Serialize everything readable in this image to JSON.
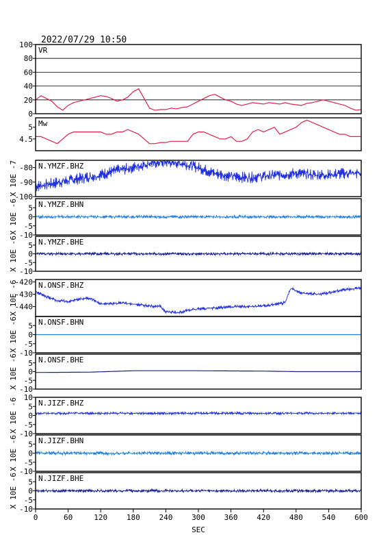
{
  "header": {
    "datetime": "2022/07/29  10:50"
  },
  "chart_data": {
    "type": "line",
    "xlabel": "SEC",
    "xlim": [
      0,
      600
    ],
    "xticks": [
      0,
      60,
      120,
      180,
      240,
      300,
      360,
      420,
      480,
      540,
      600
    ],
    "colors": {
      "vr": "#e0204a",
      "mw": "#e0204a",
      "trace": "#1f2ee0",
      "trace_light": "#1f7fe0",
      "trace_dark": "#14208f"
    },
    "panels": [
      {
        "id": "vr",
        "label": "VR",
        "ylim": [
          0,
          100
        ],
        "yticks": [
          0,
          20,
          40,
          60,
          80,
          100
        ],
        "grid": true,
        "series": {
          "x": [
            0,
            10,
            20,
            30,
            40,
            50,
            60,
            70,
            80,
            90,
            100,
            110,
            120,
            130,
            140,
            150,
            160,
            170,
            180,
            190,
            200,
            210,
            220,
            230,
            240,
            250,
            260,
            270,
            280,
            290,
            300,
            310,
            320,
            330,
            340,
            350,
            360,
            370,
            380,
            390,
            400,
            410,
            420,
            430,
            440,
            450,
            460,
            470,
            480,
            490,
            500,
            510,
            520,
            530,
            540,
            550,
            560,
            570,
            580,
            590,
            600
          ],
          "y": [
            20,
            26,
            22,
            18,
            10,
            5,
            12,
            16,
            18,
            20,
            22,
            24,
            26,
            25,
            22,
            18,
            20,
            24,
            32,
            36,
            22,
            8,
            5,
            6,
            6,
            8,
            7,
            9,
            10,
            14,
            18,
            22,
            26,
            28,
            24,
            20,
            18,
            14,
            12,
            14,
            16,
            15,
            14,
            16,
            15,
            14,
            16,
            14,
            13,
            12,
            15,
            16,
            18,
            20,
            18,
            16,
            14,
            12,
            8,
            5,
            6
          ]
        }
      },
      {
        "id": "mw",
        "label": "Mw",
        "ylim": [
          4.0,
          5.4
        ],
        "yticks": [
          4.5,
          5.0
        ],
        "grid": false,
        "series": {
          "x": [
            0,
            10,
            20,
            30,
            40,
            50,
            60,
            70,
            80,
            90,
            100,
            110,
            120,
            130,
            140,
            150,
            160,
            170,
            180,
            190,
            200,
            210,
            220,
            230,
            240,
            250,
            260,
            270,
            280,
            290,
            300,
            310,
            320,
            330,
            340,
            350,
            360,
            370,
            380,
            390,
            400,
            410,
            420,
            430,
            440,
            450,
            460,
            470,
            480,
            490,
            500,
            510,
            520,
            530,
            540,
            550,
            560,
            570,
            580,
            590,
            600
          ],
          "y": [
            4.6,
            4.6,
            4.5,
            4.4,
            4.3,
            4.5,
            4.7,
            4.8,
            4.8,
            4.8,
            4.8,
            4.8,
            4.8,
            4.7,
            4.7,
            4.8,
            4.8,
            4.9,
            4.8,
            4.7,
            4.5,
            4.3,
            4.3,
            4.35,
            4.35,
            4.4,
            4.4,
            4.4,
            4.4,
            4.7,
            4.8,
            4.8,
            4.7,
            4.6,
            4.5,
            4.5,
            4.6,
            4.4,
            4.4,
            4.5,
            4.8,
            4.9,
            4.8,
            4.9,
            5.0,
            4.7,
            4.8,
            4.9,
            5.0,
            5.2,
            5.3,
            5.2,
            5.1,
            5.0,
            4.9,
            4.8,
            4.7,
            4.7,
            4.6,
            4.6,
            4.6
          ]
        }
      },
      {
        "id": "ymzf_bhz",
        "label": "N.YMZF.BHZ",
        "ylim": [
          -100,
          -75
        ],
        "yticks": [
          -100,
          -90,
          -80
        ],
        "ylabel": "X 10E -7",
        "series": {
          "x": [
            0,
            30,
            60,
            90,
            120,
            150,
            180,
            210,
            240,
            270,
            300,
            330,
            360,
            390,
            420,
            450,
            480,
            510,
            540,
            570,
            600
          ],
          "y": [
            -93,
            -91,
            -89,
            -87,
            -85,
            -82,
            -80,
            -77,
            -76,
            -77,
            -80,
            -84,
            -86,
            -87,
            -86,
            -85,
            -84,
            -85,
            -85,
            -84,
            -84
          ],
          "noise": 2.5,
          "color": "trace"
        }
      },
      {
        "id": "ymzf_bhn",
        "label": "N.YMZF.BHN",
        "ylim": [
          -10,
          10
        ],
        "yticks": [
          -10,
          -5,
          0,
          5
        ],
        "ylabel": "X 10E -6",
        "series": {
          "x": [
            0,
            600
          ],
          "y": [
            0,
            0
          ],
          "noise": 0.5,
          "color": "trace_light"
        }
      },
      {
        "id": "ymzf_bhe",
        "label": "N.YMZF.BHE",
        "ylim": [
          -10,
          10
        ],
        "yticks": [
          -10,
          -5,
          0,
          5
        ],
        "ylabel": "X 10E -6",
        "series": {
          "x": [
            0,
            600
          ],
          "y": [
            0,
            0
          ],
          "noise": 0.5,
          "color": "trace_dark"
        }
      },
      {
        "id": "onsf_bhz",
        "label": "N.ONSF.BHZ",
        "ylim": [
          -448,
          -418
        ],
        "yticks": [
          -440,
          -430,
          -420
        ],
        "ylabel": "X 10E -6",
        "series": {
          "x": [
            0,
            20,
            40,
            60,
            80,
            100,
            120,
            160,
            200,
            230,
            240,
            260,
            280,
            300,
            330,
            360,
            400,
            430,
            460,
            470,
            490,
            520,
            550,
            570,
            600
          ],
          "y": [
            -428,
            -432,
            -435,
            -436,
            -434,
            -433,
            -438,
            -437,
            -439,
            -440,
            -444,
            -445,
            -443,
            -442,
            -441,
            -440,
            -440,
            -439,
            -437,
            -425,
            -429,
            -430,
            -428,
            -426,
            -425
          ],
          "noise": 0.8,
          "color": "trace"
        }
      },
      {
        "id": "onsf_bhn",
        "label": "N.ONSF.BHN",
        "ylim": [
          -10,
          10
        ],
        "yticks": [
          -10,
          -5,
          0,
          5
        ],
        "ylabel": "X 10E -6",
        "series": {
          "x": [
            0,
            600
          ],
          "y": [
            0,
            0
          ],
          "noise": 0.0,
          "color": "trace_light"
        }
      },
      {
        "id": "onsf_bhe",
        "label": "N.ONSF.BHE",
        "ylim": [
          -10,
          10
        ],
        "yticks": [
          -10,
          -5,
          0,
          5
        ],
        "ylabel": "X 10E -6",
        "series": {
          "x": [
            0,
            100,
            180,
            300,
            420,
            480,
            600
          ],
          "y": [
            -0.5,
            -0.3,
            0.5,
            0.5,
            0.3,
            0.0,
            0.0
          ],
          "noise": 0.0,
          "color": "trace_dark"
        }
      },
      {
        "id": "jizf_bhz",
        "label": "N.JIZF.BHZ",
        "ylim": [
          -10,
          10
        ],
        "yticks": [
          -10,
          -5,
          0,
          5,
          10
        ],
        "ylabel": "X 10E -6",
        "series": {
          "x": [
            0,
            600
          ],
          "y": [
            1.2,
            1.2
          ],
          "noise": 0.4,
          "color": "trace"
        }
      },
      {
        "id": "jizf_bhn",
        "label": "N.JIZF.BHN",
        "ylim": [
          -10,
          10
        ],
        "yticks": [
          -10,
          -5,
          0,
          5
        ],
        "ylabel": "X 10E -6",
        "series": {
          "x": [
            0,
            600
          ],
          "y": [
            0,
            0
          ],
          "noise": 0.6,
          "color": "trace_light"
        }
      },
      {
        "id": "jizf_bhe",
        "label": "N.JIZF.BHE",
        "ylim": [
          -10,
          10
        ],
        "yticks": [
          -10,
          -5,
          0,
          5
        ],
        "ylabel": "X 10E -6",
        "series": {
          "x": [
            0,
            600
          ],
          "y": [
            0,
            0
          ],
          "noise": 0.5,
          "color": "trace_dark"
        }
      }
    ]
  }
}
